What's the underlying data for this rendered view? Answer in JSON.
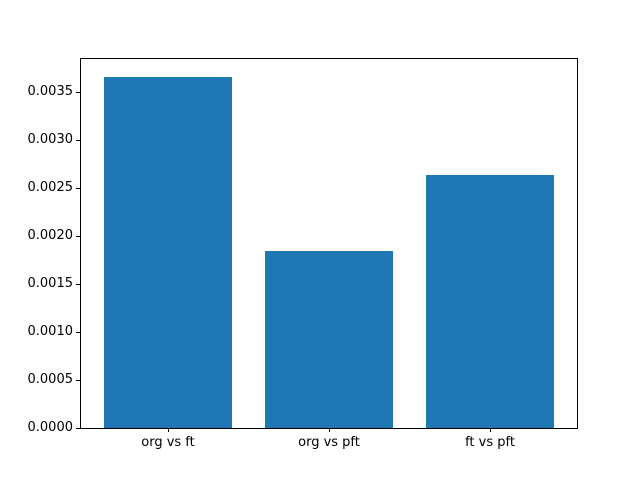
{
  "chart_data": {
    "type": "bar",
    "categories": [
      "org vs ft",
      "org vs pft",
      "ft vs pft"
    ],
    "values": [
      0.00366,
      0.00184,
      0.00264
    ],
    "title": "",
    "xlabel": "",
    "ylabel": "",
    "ylim": [
      0,
      0.003843
    ],
    "yticks": [
      0.0,
      0.0005,
      0.001,
      0.0015,
      0.002,
      0.0025,
      0.003,
      0.0035
    ],
    "ytick_labels": [
      "0.0000",
      "0.0005",
      "0.0010",
      "0.0015",
      "0.0020",
      "0.0025",
      "0.0030",
      "0.0035"
    ],
    "bar_color": "#1f77b4",
    "bar_width_fraction": 0.8,
    "grid": false,
    "legend_position": null,
    "axes_color": "#000000",
    "background_color": "#ffffff"
  }
}
